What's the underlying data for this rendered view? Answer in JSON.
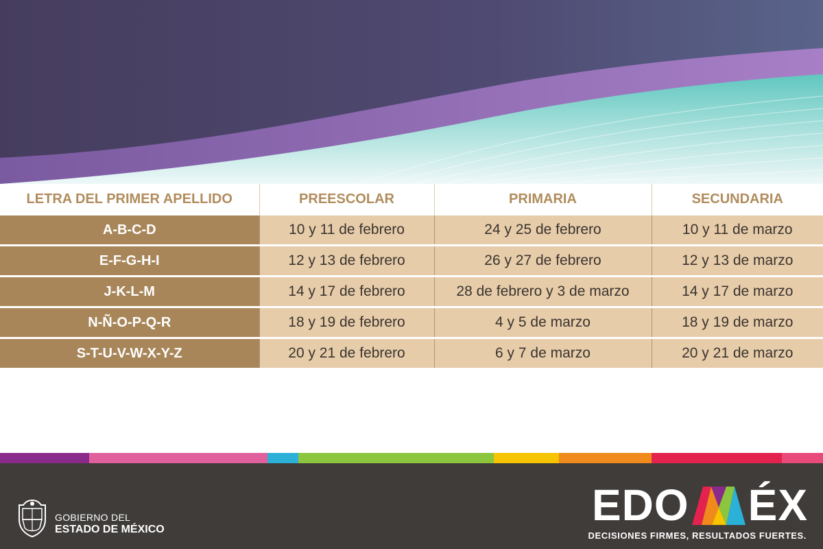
{
  "table": {
    "headers": [
      "LETRA DEL PRIMER APELLIDO",
      "PREESCOLAR",
      "PRIMARIA",
      "SECUNDARIA"
    ],
    "rows": [
      {
        "letters": "A-B-C-D",
        "preescolar": "10 y 11 de febrero",
        "primaria": "24 y 25 de febrero",
        "secundaria": "10 y 11 de marzo"
      },
      {
        "letters": "E-F-G-H-I",
        "preescolar": "12 y 13 de febrero",
        "primaria": "26 y 27 de febrero",
        "secundaria": "12 y 13 de marzo"
      },
      {
        "letters": "J-K-L-M",
        "preescolar": "14 y 17 de febrero",
        "primaria": "28 de febrero y 3 de marzo",
        "secundaria": "14 y 17 de marzo"
      },
      {
        "letters": "N-Ñ-O-P-Q-R",
        "preescolar": "18 y 19 de febrero",
        "primaria": "4 y 5 de marzo",
        "secundaria": "18 y 19 de marzo"
      },
      {
        "letters": "S-T-U-V-W-X-Y-Z",
        "preescolar": "20 y 21 de febrero",
        "primaria": "6 y 7 de marzo",
        "secundaria": "20 y 21 de marzo"
      }
    ]
  },
  "footer": {
    "gov_line1": "GOBIERNO DEL",
    "gov_line2": "ESTADO DE MÉXICO",
    "brand_left": "EDO",
    "brand_right": "ÉX",
    "tagline": "DECISIONES FIRMES, RESULTADOS FUERTES."
  },
  "colors": {
    "header_text": "#b08c5c",
    "letters_cell": "#a8865a",
    "date_cell": "#e7ccaa",
    "footer_bg": "#3f3c3a",
    "strip": [
      "#8a2a8a",
      "#e0609e",
      "#2bb0d8",
      "#8cc63e",
      "#f6c400",
      "#f08a1c",
      "#e4224e",
      "#e84a7a"
    ]
  }
}
